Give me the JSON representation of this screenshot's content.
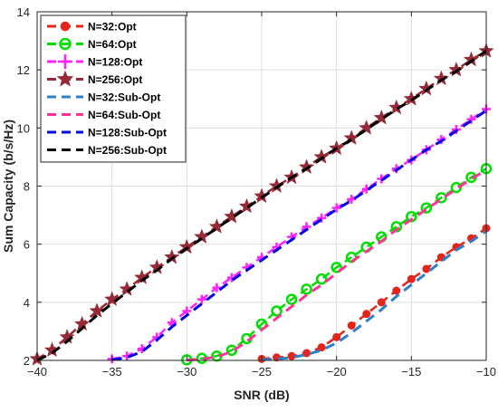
{
  "chart_data": {
    "type": "line",
    "xlabel": "SNR (dB)",
    "ylabel": "Sum Capacity (b/s/Hz)",
    "xlim": [
      -40,
      -10
    ],
    "ylim": [
      2,
      14
    ],
    "xticks": [
      -40,
      -35,
      -30,
      -25,
      -20,
      -15,
      -10
    ],
    "yticks": [
      2,
      4,
      6,
      8,
      10,
      12,
      14
    ],
    "grid": true,
    "legend_position": "top-left",
    "series": [
      {
        "name": "N=32:Opt",
        "color": "#e4251b",
        "marker": "filled-circle",
        "line": "dashed",
        "x": [
          -25,
          -24,
          -23,
          -22,
          -21,
          -20,
          -19,
          -18,
          -17,
          -16,
          -15,
          -14,
          -13,
          -12,
          -11,
          -10
        ],
        "y": [
          2.05,
          2.1,
          2.15,
          2.25,
          2.45,
          2.8,
          3.2,
          3.6,
          4.0,
          4.4,
          4.8,
          5.15,
          5.55,
          5.9,
          6.2,
          6.55
        ]
      },
      {
        "name": "N=64:Opt",
        "color": "#00dd00",
        "marker": "open-circle",
        "line": "dashed",
        "x": [
          -30,
          -29,
          -28,
          -27,
          -26,
          -25,
          -24,
          -23,
          -22,
          -21,
          -20,
          -19,
          -18,
          -17,
          -16,
          -15,
          -14,
          -13,
          -12,
          -11,
          -10
        ],
        "y": [
          2.02,
          2.07,
          2.15,
          2.35,
          2.75,
          3.25,
          3.7,
          4.1,
          4.45,
          4.8,
          5.2,
          5.55,
          5.9,
          6.25,
          6.6,
          6.95,
          7.25,
          7.6,
          7.95,
          8.3,
          8.6
        ]
      },
      {
        "name": "N=128:Opt",
        "color": "#ff22ff",
        "marker": "plus",
        "line": "dashed",
        "x": [
          -35,
          -34,
          -33,
          -32,
          -31,
          -30,
          -29,
          -28,
          -27,
          -26,
          -25,
          -24,
          -23,
          -22,
          -21,
          -20,
          -19,
          -18,
          -17,
          -16,
          -15,
          -14,
          -13,
          -12,
          -11,
          -10
        ],
        "y": [
          2.05,
          2.15,
          2.4,
          2.8,
          3.3,
          3.7,
          4.1,
          4.5,
          4.85,
          5.2,
          5.55,
          5.9,
          6.25,
          6.6,
          6.9,
          7.25,
          7.55,
          7.9,
          8.25,
          8.6,
          8.9,
          9.25,
          9.6,
          9.95,
          10.3,
          10.65
        ]
      },
      {
        "name": "N=256:Opt",
        "color": "#962937",
        "marker": "star",
        "line": "dashed",
        "x": [
          -40,
          -39,
          -38,
          -37,
          -36,
          -35,
          -34,
          -33,
          -32,
          -31,
          -30,
          -29,
          -28,
          -27,
          -26,
          -25,
          -24,
          -23,
          -22,
          -21,
          -20,
          -19,
          -18,
          -17,
          -16,
          -15,
          -14,
          -13,
          -12,
          -11,
          -10
        ],
        "y": [
          2.05,
          2.35,
          2.8,
          3.25,
          3.7,
          4.1,
          4.45,
          4.85,
          5.2,
          5.55,
          5.9,
          6.25,
          6.6,
          6.95,
          7.3,
          7.65,
          8.0,
          8.3,
          8.65,
          9.0,
          9.3,
          9.65,
          10.0,
          10.35,
          10.7,
          11.0,
          11.35,
          11.7,
          12.0,
          12.35,
          12.65
        ]
      },
      {
        "name": "N=32:Sub-Opt",
        "color": "#2e7fc8",
        "marker": "none",
        "line": "dashed",
        "x": [
          -25,
          -24,
          -23,
          -22,
          -21,
          -20,
          -19,
          -18,
          -17,
          -16,
          -15,
          -14,
          -13,
          -12,
          -11,
          -10
        ],
        "y": [
          2.02,
          2.05,
          2.1,
          2.2,
          2.35,
          2.6,
          2.95,
          3.35,
          3.75,
          4.2,
          4.6,
          5.0,
          5.4,
          5.8,
          6.1,
          6.45
        ]
      },
      {
        "name": "N=64:Sub-Opt",
        "color": "#ff3393",
        "marker": "none",
        "line": "dashed",
        "x": [
          -30,
          -29,
          -28,
          -27,
          -26,
          -25,
          -24,
          -23,
          -22,
          -21,
          -20,
          -19,
          -18,
          -17,
          -16,
          -15,
          -14,
          -13,
          -12,
          -11,
          -10
        ],
        "y": [
          2.0,
          2.05,
          2.12,
          2.3,
          2.65,
          3.05,
          3.45,
          3.85,
          4.25,
          4.6,
          5.0,
          5.4,
          5.75,
          6.1,
          6.5,
          6.85,
          7.2,
          7.55,
          7.9,
          8.25,
          8.55
        ]
      },
      {
        "name": "N=128:Sub-Opt",
        "color": "#0000e0",
        "marker": "none",
        "line": "dashed",
        "x": [
          -35,
          -34,
          -33,
          -32,
          -31,
          -30,
          -29,
          -28,
          -27,
          -26,
          -25,
          -24,
          -23,
          -22,
          -21,
          -20,
          -19,
          -18,
          -17,
          -16,
          -15,
          -14,
          -13,
          -12,
          -11,
          -10
        ],
        "y": [
          2.02,
          2.1,
          2.3,
          2.7,
          3.15,
          3.55,
          3.95,
          4.35,
          4.75,
          5.1,
          5.45,
          5.8,
          6.15,
          6.5,
          6.85,
          7.2,
          7.5,
          7.85,
          8.2,
          8.55,
          8.9,
          9.25,
          9.55,
          9.9,
          10.25,
          10.6
        ]
      },
      {
        "name": "N=256:Sub-Opt",
        "color": "#000000",
        "marker": "none",
        "line": "dashed",
        "x": [
          -40,
          -39,
          -38,
          -37,
          -36,
          -35,
          -34,
          -33,
          -32,
          -31,
          -30,
          -29,
          -28,
          -27,
          -26,
          -25,
          -24,
          -23,
          -22,
          -21,
          -20,
          -19,
          -18,
          -17,
          -16,
          -15,
          -14,
          -13,
          -12,
          -11,
          -10
        ],
        "y": [
          2.0,
          2.25,
          2.65,
          3.1,
          3.55,
          3.95,
          4.35,
          4.75,
          5.1,
          5.5,
          5.85,
          6.2,
          6.55,
          6.9,
          7.25,
          7.6,
          7.95,
          8.3,
          8.6,
          8.95,
          9.3,
          9.6,
          9.95,
          10.3,
          10.65,
          10.95,
          11.3,
          11.65,
          11.95,
          12.3,
          12.65
        ]
      }
    ]
  }
}
